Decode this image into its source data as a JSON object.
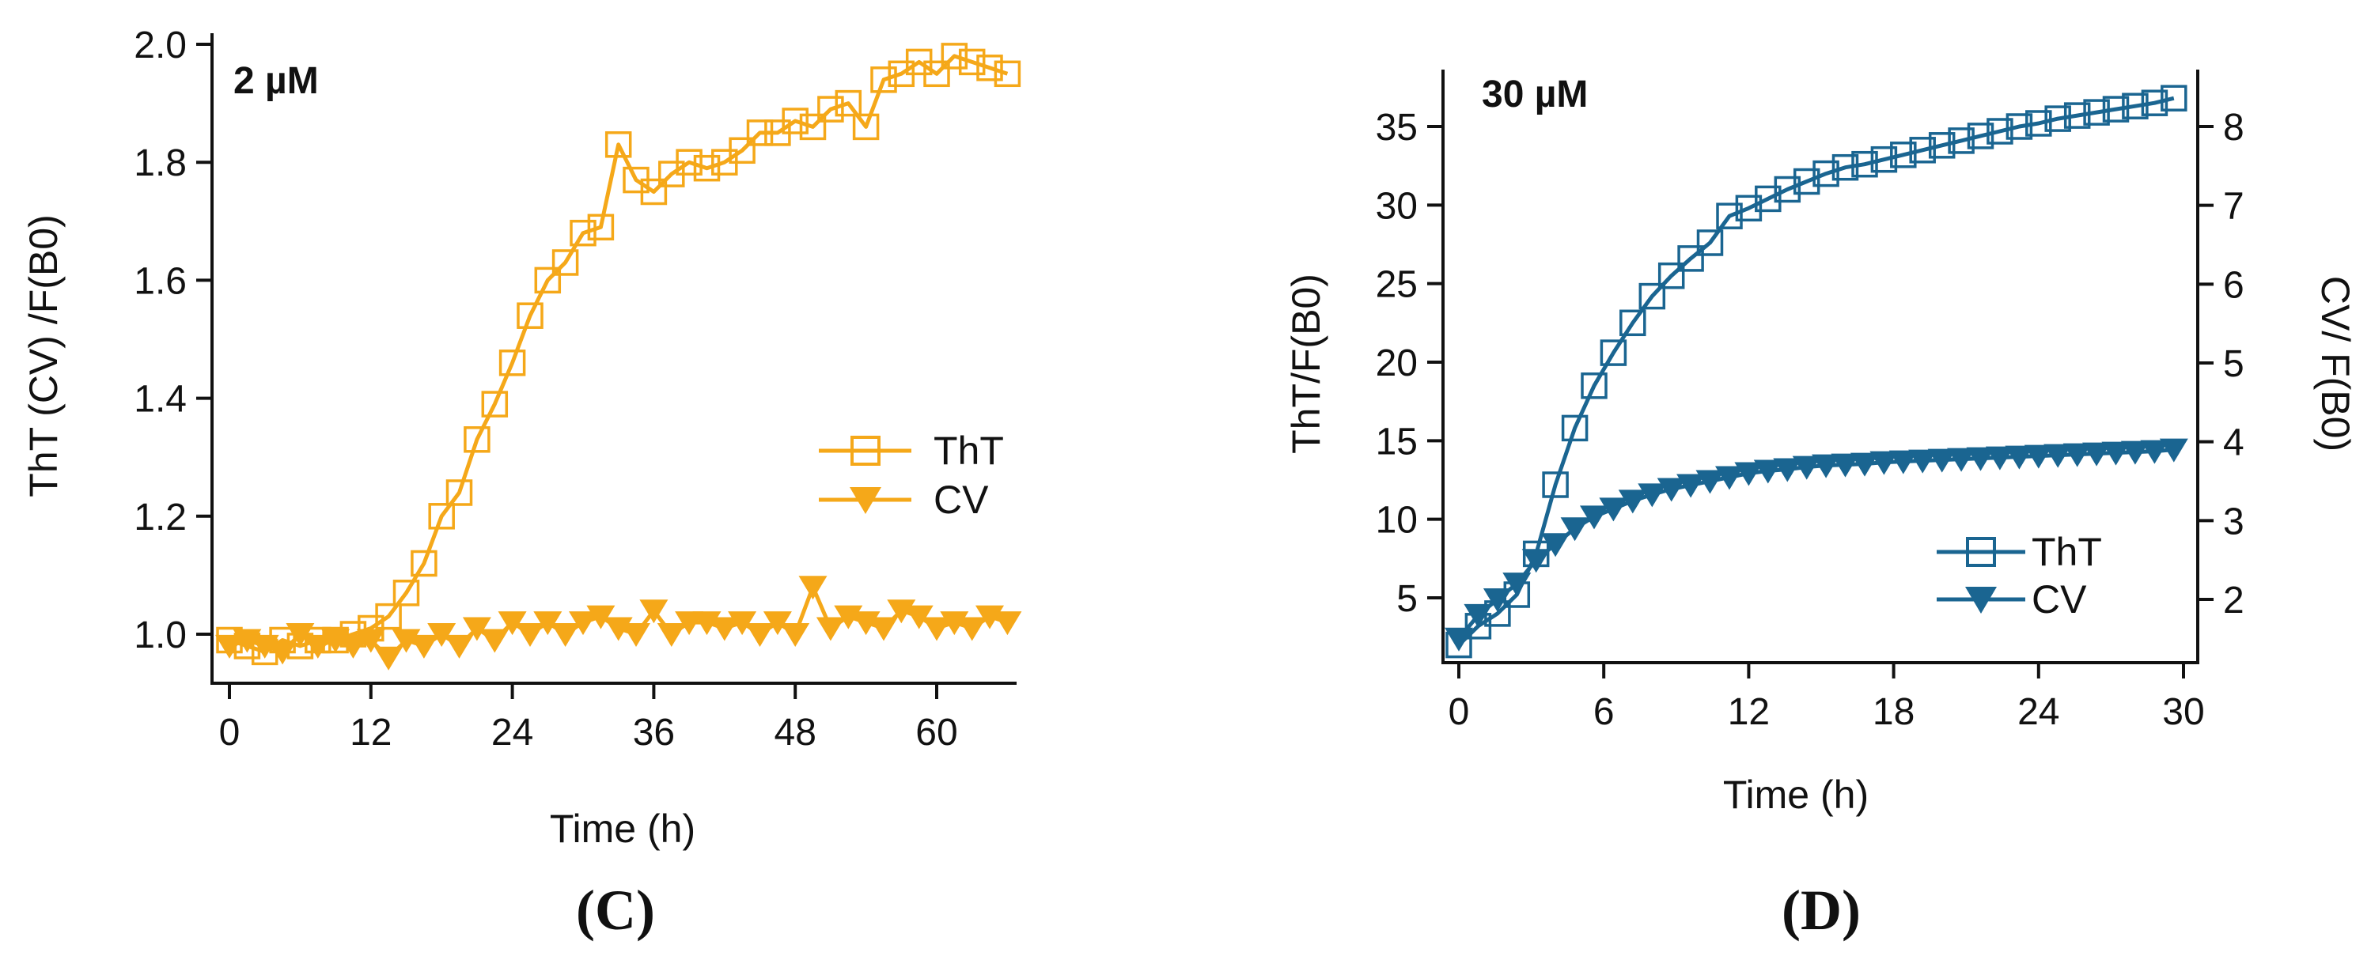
{
  "chart_data": [
    {
      "panel": "C",
      "panel_label": "(C)",
      "type": "line",
      "annotation": "2 µM",
      "xlabel": "Time (h)",
      "ylabel": "ThT (CV) /F(B0)",
      "xlim": [
        -2,
        66
      ],
      "ylim": [
        0.93,
        2.0
      ],
      "xticks": [
        0,
        12,
        24,
        36,
        48,
        60
      ],
      "yticks": [
        1.0,
        1.2,
        1.4,
        1.6,
        1.8,
        2.0
      ],
      "ytick_labels": [
        "1.0",
        "1.2",
        "1.4",
        "1.6",
        "1.8",
        "2.0"
      ],
      "color": "#F5A819",
      "legend": {
        "position": "center-right",
        "entries": [
          "ThT",
          "CV"
        ]
      },
      "series": [
        {
          "name": "ThT",
          "marker": "open-square",
          "x": [
            0,
            1.5,
            3,
            4.5,
            6,
            7.5,
            9,
            10.5,
            12,
            13.5,
            15,
            16.5,
            18,
            19.5,
            21,
            22.5,
            24,
            25.5,
            27,
            28.5,
            30,
            31.5,
            33,
            34.5,
            36,
            37.5,
            39,
            40.5,
            42,
            43.5,
            45,
            46.5,
            48,
            49.5,
            51,
            52.5,
            54,
            55.5,
            57,
            58.5,
            60,
            61.5,
            63,
            64.5,
            66
          ],
          "y": [
            0.99,
            0.98,
            0.97,
            0.99,
            0.98,
            0.99,
            0.99,
            1.0,
            1.01,
            1.03,
            1.07,
            1.12,
            1.2,
            1.24,
            1.33,
            1.39,
            1.46,
            1.54,
            1.6,
            1.63,
            1.68,
            1.69,
            1.83,
            1.77,
            1.75,
            1.78,
            1.8,
            1.79,
            1.8,
            1.82,
            1.85,
            1.85,
            1.87,
            1.86,
            1.89,
            1.9,
            1.86,
            1.94,
            1.95,
            1.97,
            1.95,
            1.98,
            1.97,
            1.96,
            1.95
          ]
        },
        {
          "name": "CV",
          "marker": "filled-down-triangle",
          "x": [
            0,
            1.5,
            3,
            4.5,
            6,
            7.5,
            9,
            10.5,
            12,
            13.5,
            15,
            16.5,
            18,
            19.5,
            21,
            22.5,
            24,
            25.5,
            27,
            28.5,
            30,
            31.5,
            33,
            34.5,
            36,
            37.5,
            39,
            40.5,
            42,
            43.5,
            45,
            46.5,
            48,
            49.5,
            51,
            52.5,
            54,
            55.5,
            57,
            58.5,
            60,
            61.5,
            63,
            64.5,
            66
          ],
          "y": [
            0.98,
            0.99,
            0.98,
            0.97,
            1.0,
            0.98,
            0.99,
            0.98,
            0.99,
            0.96,
            0.99,
            0.98,
            1.0,
            0.98,
            1.01,
            0.99,
            1.02,
            1.0,
            1.02,
            1.0,
            1.02,
            1.03,
            1.01,
            1.0,
            1.04,
            1.0,
            1.02,
            1.02,
            1.01,
            1.02,
            1.0,
            1.02,
            1.0,
            1.08,
            1.01,
            1.03,
            1.02,
            1.01,
            1.04,
            1.03,
            1.01,
            1.02,
            1.01,
            1.03,
            1.02
          ]
        }
      ]
    },
    {
      "panel": "D",
      "panel_label": "(D)",
      "type": "line",
      "annotation": "30 µM",
      "xlabel": "Time (h)",
      "ylabel": "ThT/F(B0)",
      "y2label": "CV/ F(B0)",
      "xlim": [
        -0.6,
        30.3
      ],
      "ylim": [
        1,
        38
      ],
      "y2lim": [
        1.1,
        8.5
      ],
      "xticks": [
        0,
        6,
        12,
        18,
        24,
        30
      ],
      "yticks": [
        5,
        10,
        15,
        20,
        25,
        30,
        35
      ],
      "y2ticks": [
        2,
        3,
        4,
        5,
        6,
        7,
        8
      ],
      "color": "#1A6591",
      "legend": {
        "position": "bottom-right",
        "entries": [
          "ThT",
          "CV"
        ]
      },
      "series": [
        {
          "name": "ThT",
          "axis": "left",
          "marker": "open-square",
          "x": [
            0,
            0.8,
            1.6,
            2.4,
            3.2,
            4,
            4.8,
            5.6,
            6.4,
            7.2,
            8,
            8.8,
            9.6,
            10.4,
            11.2,
            12,
            12.8,
            13.6,
            14.4,
            15.2,
            16,
            16.8,
            17.6,
            18.4,
            19.2,
            20,
            20.8,
            21.6,
            22.4,
            23.2,
            24,
            24.8,
            25.6,
            26.4,
            27.2,
            28,
            28.8,
            29.6
          ],
          "y": [
            2,
            3.2,
            4,
            5.2,
            7.8,
            12.2,
            15.8,
            18.5,
            20.6,
            22.5,
            24.2,
            25.5,
            26.6,
            27.6,
            29.3,
            29.8,
            30.4,
            31.0,
            31.5,
            32.0,
            32.4,
            32.6,
            32.9,
            33.2,
            33.5,
            33.8,
            34.1,
            34.4,
            34.7,
            35.0,
            35.2,
            35.5,
            35.7,
            35.9,
            36.1,
            36.3,
            36.5,
            36.8
          ]
        },
        {
          "name": "CV",
          "axis": "right",
          "marker": "filled-down-triangle",
          "x": [
            0,
            0.8,
            1.6,
            2.4,
            3.2,
            4,
            4.8,
            5.6,
            6.4,
            7.2,
            8,
            8.8,
            9.6,
            10.4,
            11.2,
            12,
            12.8,
            13.6,
            14.4,
            15.2,
            16,
            16.8,
            17.6,
            18.4,
            19.2,
            20,
            20.8,
            21.6,
            22.4,
            23.2,
            24,
            24.8,
            25.6,
            26.4,
            27.2,
            28,
            28.8,
            29.6
          ],
          "y": [
            1.5,
            1.8,
            2.0,
            2.2,
            2.5,
            2.7,
            2.9,
            3.05,
            3.15,
            3.25,
            3.33,
            3.4,
            3.45,
            3.5,
            3.55,
            3.6,
            3.63,
            3.65,
            3.68,
            3.7,
            3.71,
            3.72,
            3.74,
            3.75,
            3.76,
            3.77,
            3.78,
            3.79,
            3.8,
            3.81,
            3.82,
            3.83,
            3.84,
            3.85,
            3.86,
            3.87,
            3.88,
            3.9
          ]
        }
      ]
    }
  ]
}
